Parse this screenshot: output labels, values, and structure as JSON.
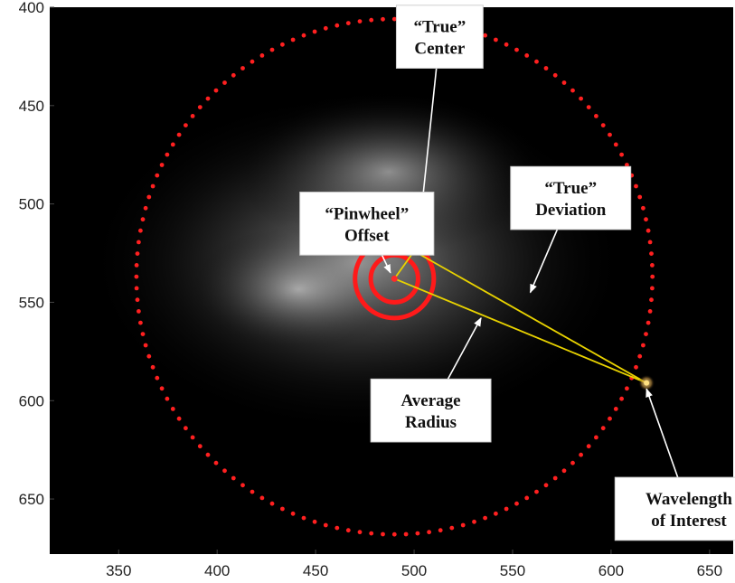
{
  "chart_data": {
    "type": "scatter",
    "title": "",
    "xlabel": "",
    "ylabel": "",
    "xlim": [
      315,
      662
    ],
    "ylim": [
      678,
      400
    ],
    "y_inverted": true,
    "grid": false,
    "background": "#000000",
    "x_ticks": [
      350,
      400,
      450,
      500,
      550,
      600,
      650
    ],
    "y_ticks": [
      400,
      450,
      500,
      550,
      600,
      650
    ],
    "x_tick_labels": [
      "350",
      "400",
      "450",
      "500",
      "550",
      "600",
      "650"
    ],
    "y_tick_labels": [
      "400",
      "450",
      "500",
      "550",
      "600",
      "650"
    ],
    "outer_ring": {
      "cx": 490,
      "cy": 537,
      "r": 131,
      "color": "#ff2020",
      "marker": "dot"
    },
    "rings": [
      {
        "cx": 490,
        "cy": 538,
        "r": 20,
        "color": "#ff1a1a"
      },
      {
        "cx": 490,
        "cy": 538,
        "r": 12,
        "color": "#ff1a1a"
      }
    ],
    "points": {
      "pinwheel_offset": {
        "x": 490,
        "y": 538
      },
      "true_center": {
        "x": 500,
        "y": 524
      },
      "wavelength_of_interest": {
        "x": 618,
        "y": 591
      }
    },
    "lines": [
      {
        "from": "pinwheel_offset",
        "to": "true_center",
        "color": "#e8d200"
      },
      {
        "from": "pinwheel_offset",
        "to": "wavelength_of_interest",
        "color": "#e8d200"
      },
      {
        "from": "true_center",
        "to": "wavelength_of_interest",
        "color": "#e8d200"
      }
    ],
    "annotations": [
      {
        "id": "pinwheel",
        "lines": [
          "“Pinwheel”",
          "Offset"
        ],
        "box": {
          "x": 442,
          "y": 494,
          "w": 68,
          "h": 32
        },
        "arrow_to": {
          "x": 488,
          "y": 535
        }
      },
      {
        "id": "true-center",
        "lines": [
          "“True”",
          "Center"
        ],
        "box": {
          "x": 491,
          "y": 399,
          "w": 44,
          "h": 32
        },
        "arrow_to": {
          "x": 502,
          "y": 520
        }
      },
      {
        "id": "true-deviation",
        "lines": [
          "“True”",
          "Deviation"
        ],
        "box": {
          "x": 549,
          "y": 481,
          "w": 61,
          "h": 32
        },
        "arrow_to": {
          "x": 559,
          "y": 545
        }
      },
      {
        "id": "average-radius",
        "lines": [
          "Average",
          "Radius"
        ],
        "box": {
          "x": 478,
          "y": 589,
          "w": 61,
          "h": 32
        },
        "arrow_to": {
          "x": 534,
          "y": 558
        }
      },
      {
        "id": "wavelength",
        "lines": [
          "Wavelength",
          "of Interest"
        ],
        "box": {
          "x": 602,
          "y": 639,
          "w": 75,
          "h": 32
        },
        "arrow_to": {
          "x": 618,
          "y": 594
        }
      }
    ]
  }
}
